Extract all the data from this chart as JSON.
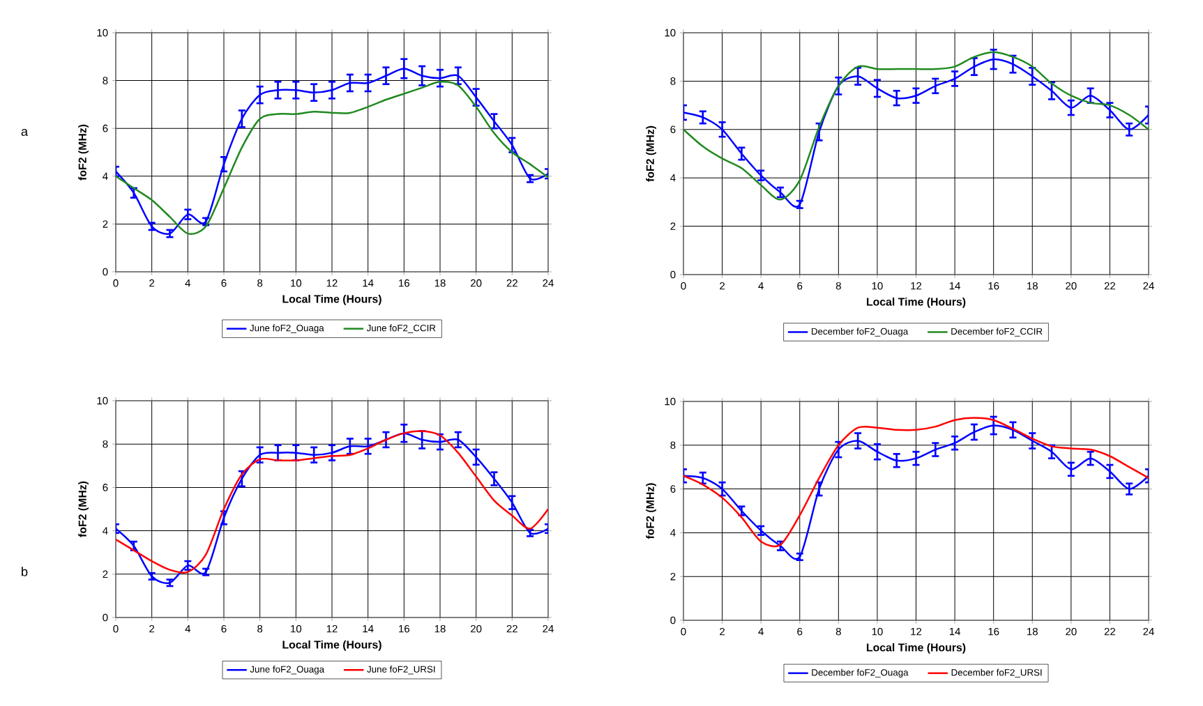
{
  "chart_data": [
    {
      "type": "line",
      "xlabel": "Local Time (Hours)",
      "ylabel": "foF2 (MHz)",
      "annotations": [
        "a"
      ],
      "x": [
        0,
        1,
        2,
        3,
        4,
        5,
        6,
        7,
        8,
        9,
        10,
        11,
        12,
        13,
        14,
        15,
        16,
        17,
        18,
        19,
        20,
        21,
        22,
        23,
        24
      ],
      "xlim": [
        0,
        24
      ],
      "ylim": [
        0,
        10
      ],
      "xticks": [
        0,
        2,
        4,
        6,
        8,
        10,
        12,
        14,
        16,
        18,
        20,
        22,
        24
      ],
      "yticks": [
        0,
        2,
        4,
        6,
        8,
        10
      ],
      "grid": true,
      "legend": "bottom",
      "series": [
        {
          "name": "June foF2_Ouaga",
          "color": "#0000ff",
          "values": [
            4.2,
            3.3,
            1.9,
            1.6,
            2.4,
            2.1,
            4.5,
            6.4,
            7.4,
            7.6,
            7.6,
            7.5,
            7.6,
            7.9,
            7.9,
            8.2,
            8.5,
            8.2,
            8.1,
            8.2,
            7.3,
            6.3,
            5.3,
            3.9,
            4.1
          ],
          "errors": [
            0.2,
            0.2,
            0.15,
            0.15,
            0.2,
            0.15,
            0.3,
            0.35,
            0.35,
            0.35,
            0.35,
            0.35,
            0.35,
            0.35,
            0.35,
            0.35,
            0.4,
            0.4,
            0.35,
            0.35,
            0.35,
            0.3,
            0.3,
            0.15,
            0.2
          ]
        },
        {
          "name": "June foF2_CCIR",
          "color": "#1f8a1f",
          "values": [
            4.0,
            3.5,
            3.0,
            2.3,
            1.6,
            1.9,
            3.5,
            5.2,
            6.4,
            6.6,
            6.6,
            6.7,
            6.65,
            6.65,
            6.9,
            7.2,
            7.45,
            7.7,
            7.95,
            7.8,
            6.9,
            5.8,
            5.0,
            4.5,
            3.95
          ]
        }
      ]
    },
    {
      "type": "line",
      "xlabel": "Local Time (Hours)",
      "ylabel": "foF2 (MHz)",
      "x": [
        0,
        1,
        2,
        3,
        4,
        5,
        6,
        7,
        8,
        9,
        10,
        11,
        12,
        13,
        14,
        15,
        16,
        17,
        18,
        19,
        20,
        21,
        22,
        23,
        24
      ],
      "xlim": [
        0,
        24
      ],
      "ylim": [
        0,
        10
      ],
      "xticks": [
        0,
        2,
        4,
        6,
        8,
        10,
        12,
        14,
        16,
        18,
        20,
        22,
        24
      ],
      "yticks": [
        0,
        2,
        4,
        6,
        8,
        10
      ],
      "grid": true,
      "legend": "bottom",
      "series": [
        {
          "name": "December foF2_Ouaga",
          "color": "#0000ff",
          "values": [
            6.7,
            6.5,
            6.0,
            5.0,
            4.1,
            3.4,
            2.9,
            5.9,
            7.8,
            8.2,
            7.7,
            7.3,
            7.4,
            7.8,
            8.1,
            8.6,
            8.9,
            8.7,
            8.2,
            7.6,
            6.9,
            7.4,
            6.8,
            6.0,
            6.6
          ],
          "errors": [
            0.3,
            0.25,
            0.3,
            0.25,
            0.2,
            0.2,
            0.15,
            0.35,
            0.35,
            0.35,
            0.35,
            0.3,
            0.3,
            0.3,
            0.3,
            0.35,
            0.4,
            0.35,
            0.35,
            0.35,
            0.3,
            0.3,
            0.3,
            0.25,
            0.35
          ]
        },
        {
          "name": "December foF2_CCIR",
          "color": "#1f8a1f",
          "values": [
            6.0,
            5.3,
            4.8,
            4.4,
            3.7,
            3.1,
            3.9,
            6.1,
            7.8,
            8.6,
            8.5,
            8.5,
            8.5,
            8.5,
            8.6,
            9.0,
            9.2,
            9.0,
            8.6,
            7.9,
            7.4,
            7.1,
            7.0,
            6.6,
            6.0
          ]
        }
      ]
    },
    {
      "type": "line",
      "xlabel": "Local Time (Hours)",
      "ylabel": "foF2 (MHz)",
      "annotations": [
        "b"
      ],
      "x": [
        0,
        1,
        2,
        3,
        4,
        5,
        6,
        7,
        8,
        9,
        10,
        11,
        12,
        13,
        14,
        15,
        16,
        17,
        18,
        19,
        20,
        21,
        22,
        23,
        24
      ],
      "xlim": [
        0,
        24
      ],
      "ylim": [
        0,
        10
      ],
      "xticks": [
        0,
        2,
        4,
        6,
        8,
        10,
        12,
        14,
        16,
        18,
        20,
        22,
        24
      ],
      "yticks": [
        0,
        2,
        4,
        6,
        8,
        10
      ],
      "grid": true,
      "legend": "bottom",
      "series": [
        {
          "name": "June foF2_Ouaga",
          "color": "#0000ff",
          "values": [
            4.1,
            3.3,
            1.9,
            1.6,
            2.4,
            2.1,
            4.6,
            6.4,
            7.5,
            7.6,
            7.6,
            7.5,
            7.6,
            7.9,
            7.9,
            8.2,
            8.5,
            8.2,
            8.1,
            8.2,
            7.4,
            6.4,
            5.3,
            3.9,
            4.1
          ],
          "errors": [
            0.2,
            0.2,
            0.15,
            0.15,
            0.2,
            0.15,
            0.3,
            0.35,
            0.35,
            0.35,
            0.35,
            0.35,
            0.35,
            0.35,
            0.35,
            0.35,
            0.4,
            0.4,
            0.35,
            0.35,
            0.35,
            0.3,
            0.3,
            0.15,
            0.2
          ]
        },
        {
          "name": "June foF2_URSI",
          "color": "#ff0000",
          "values": [
            3.6,
            3.1,
            2.6,
            2.2,
            2.1,
            2.9,
            5.0,
            6.6,
            7.3,
            7.25,
            7.25,
            7.35,
            7.45,
            7.5,
            7.8,
            8.2,
            8.5,
            8.6,
            8.4,
            7.6,
            6.5,
            5.4,
            4.7,
            4.1,
            5.0
          ]
        }
      ]
    },
    {
      "type": "line",
      "xlabel": "Local Time (Hours)",
      "ylabel": "foF2 (MHz)",
      "x": [
        0,
        1,
        2,
        3,
        4,
        5,
        6,
        7,
        8,
        9,
        10,
        11,
        12,
        13,
        14,
        15,
        16,
        17,
        18,
        19,
        20,
        21,
        22,
        23,
        24
      ],
      "xlim": [
        0,
        24
      ],
      "ylim": [
        0,
        10
      ],
      "xticks": [
        0,
        2,
        4,
        6,
        8,
        10,
        12,
        14,
        16,
        18,
        20,
        22,
        24
      ],
      "yticks": [
        0,
        2,
        4,
        6,
        8,
        10
      ],
      "grid": true,
      "legend": "bottom",
      "series": [
        {
          "name": "December foF2_Ouaga",
          "color": "#0000ff",
          "values": [
            6.6,
            6.5,
            6.0,
            5.0,
            4.1,
            3.4,
            2.9,
            6.0,
            7.8,
            8.2,
            7.7,
            7.3,
            7.4,
            7.8,
            8.1,
            8.6,
            8.9,
            8.7,
            8.2,
            7.7,
            6.9,
            7.4,
            6.8,
            6.0,
            6.6
          ],
          "errors": [
            0.3,
            0.25,
            0.3,
            0.2,
            0.2,
            0.2,
            0.15,
            0.3,
            0.35,
            0.35,
            0.35,
            0.3,
            0.3,
            0.3,
            0.3,
            0.35,
            0.4,
            0.35,
            0.35,
            0.3,
            0.3,
            0.3,
            0.3,
            0.25,
            0.3
          ]
        },
        {
          "name": "December foF2_URSI",
          "color": "#ff0000",
          "values": [
            6.6,
            6.2,
            5.6,
            4.7,
            3.6,
            3.45,
            4.8,
            6.5,
            8.0,
            8.8,
            8.8,
            8.7,
            8.7,
            8.85,
            9.15,
            9.25,
            9.15,
            8.75,
            8.3,
            7.95,
            7.85,
            7.8,
            7.5,
            7.0,
            6.5
          ]
        }
      ]
    }
  ]
}
